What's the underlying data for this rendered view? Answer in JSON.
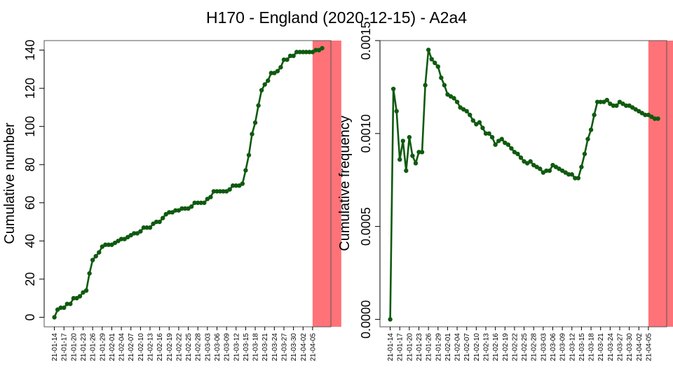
{
  "title": "H170 - England (2020-12-15) - A2a4",
  "colors": {
    "series": "#0f5a0f",
    "highlight": "#ff7278",
    "axis": "#000000"
  },
  "chart_data": [
    {
      "type": "line",
      "ylabel": "Cumulative number",
      "xlabel": "",
      "ylim": [
        -5,
        145
      ],
      "yticks": [
        "0",
        "20",
        "40",
        "60",
        "80",
        "100",
        "120",
        "140"
      ],
      "ytick_values": [
        0,
        20,
        40,
        60,
        80,
        100,
        120,
        140
      ],
      "highlight_x": [
        81,
        90
      ],
      "x_tick_labels": [
        "21-01-14",
        "21-01-17",
        "21-01-20",
        "21-01-23",
        "21-01-26",
        "21-01-29",
        "21-02-01",
        "21-02-04",
        "21-02-07",
        "21-02-10",
        "21-02-13",
        "21-02-16",
        "21-02-19",
        "21-02-22",
        "21-02-25",
        "21-02-28",
        "21-03-03",
        "21-03-06",
        "21-03-09",
        "21-03-12",
        "21-03-15",
        "21-03-18",
        "21-03-21",
        "21-03-24",
        "21-03-27",
        "21-03-30",
        "21-04-02",
        "21-04-05"
      ],
      "values": [
        0,
        4,
        5,
        5,
        7,
        7,
        10,
        10,
        11,
        13,
        14,
        23,
        30,
        32,
        34,
        37,
        38,
        38,
        38,
        39,
        40,
        41,
        41,
        42,
        43,
        44,
        44,
        45,
        47,
        47,
        47,
        49,
        50,
        50,
        52,
        54,
        55,
        55,
        56,
        56,
        57,
        57,
        57,
        58,
        60,
        60,
        60,
        60,
        62,
        63,
        66,
        66,
        66,
        66,
        66,
        67,
        69,
        69,
        69,
        70,
        77,
        85,
        96,
        102,
        111,
        119,
        122,
        124,
        128,
        128,
        129,
        131,
        135,
        135,
        137,
        137,
        139,
        139,
        139,
        139,
        139,
        139,
        140,
        140,
        141
      ]
    },
    {
      "type": "line",
      "ylabel": "Cumulative frequency",
      "xlabel": "",
      "ylim": [
        -4e-05,
        0.0015
      ],
      "yticks": [
        "0.0000",
        "0.0005",
        "0.0010",
        "0.0015"
      ],
      "ytick_values": [
        0,
        0.0005,
        0.001,
        0.0015
      ],
      "highlight_x": [
        81,
        90
      ],
      "x_tick_labels": [
        "21-01-14",
        "21-01-17",
        "21-01-20",
        "21-01-23",
        "21-01-26",
        "21-01-29",
        "21-02-01",
        "21-02-04",
        "21-02-07",
        "21-02-10",
        "21-02-13",
        "21-02-16",
        "21-02-19",
        "21-02-22",
        "21-02-25",
        "21-02-28",
        "21-03-03",
        "21-03-06",
        "21-03-09",
        "21-03-12",
        "21-03-15",
        "21-03-18",
        "21-03-21",
        "21-03-24",
        "21-03-27",
        "21-03-30",
        "21-04-02",
        "21-04-05"
      ],
      "values": [
        0,
        0.00124,
        0.00112,
        0.00086,
        0.00096,
        0.0008,
        0.00098,
        0.00088,
        0.00084,
        0.0009,
        0.0009,
        0.00126,
        0.00145,
        0.0014,
        0.00138,
        0.00136,
        0.0013,
        0.00126,
        0.00121,
        0.0012,
        0.00119,
        0.00117,
        0.00114,
        0.00113,
        0.00112,
        0.0011,
        0.00107,
        0.00105,
        0.00106,
        0.00103,
        0.001,
        0.001,
        0.00098,
        0.00094,
        0.00096,
        0.00097,
        0.00095,
        0.00094,
        0.00092,
        0.0009,
        0.00089,
        0.00087,
        0.00085,
        0.00084,
        0.00085,
        0.00083,
        0.00082,
        0.00081,
        0.00079,
        0.0008,
        0.0008,
        0.00083,
        0.00082,
        0.00081,
        0.0008,
        0.00079,
        0.00078,
        0.00078,
        0.00076,
        0.00076,
        0.00082,
        0.00089,
        0.00097,
        0.00102,
        0.0011,
        0.00117,
        0.00117,
        0.00117,
        0.00118,
        0.00116,
        0.00115,
        0.00115,
        0.00117,
        0.00116,
        0.00115,
        0.00115,
        0.00114,
        0.00113,
        0.00112,
        0.00111,
        0.0011,
        0.0011,
        0.00109,
        0.00108,
        0.00108
      ]
    }
  ]
}
